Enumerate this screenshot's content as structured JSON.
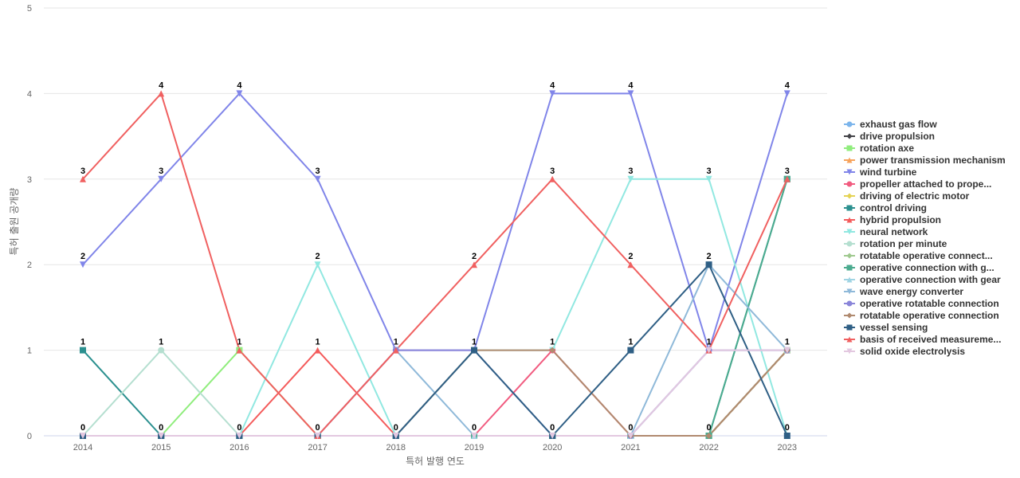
{
  "chart_data": {
    "type": "line",
    "xlabel": "특허 발행 연도",
    "ylabel": "특허 출원 공개량",
    "ylim": [
      0,
      5
    ],
    "yticks": [
      0,
      1,
      2,
      3,
      4,
      5
    ],
    "grid": true,
    "legend_position": "right",
    "x": [
      "2014",
      "2015",
      "2016",
      "2017",
      "2018",
      "2019",
      "2020",
      "2021",
      "2022",
      "2023"
    ],
    "series": [
      {
        "name": "exhaust gas flow",
        "color": "#7cb5ec",
        "marker": "circle",
        "values": [
          0,
          0,
          0,
          0,
          0,
          0,
          0,
          0,
          0,
          1
        ]
      },
      {
        "name": "drive propulsion",
        "color": "#434348",
        "marker": "diamond",
        "values": [
          0,
          0,
          0,
          0,
          0,
          0,
          0,
          0,
          0,
          1
        ]
      },
      {
        "name": "rotation axe",
        "color": "#90ed7d",
        "marker": "square",
        "values": [
          0,
          0,
          1,
          0,
          0,
          0,
          0,
          0,
          0,
          1
        ]
      },
      {
        "name": "power transmission mechanism",
        "color": "#f7a35c",
        "marker": "triangle",
        "values": [
          0,
          0,
          0,
          0,
          0,
          0,
          0,
          0,
          0,
          1
        ]
      },
      {
        "name": "wind turbine",
        "color": "#8085e9",
        "marker": "triangle-down",
        "values": [
          2,
          3,
          4,
          3,
          1,
          1,
          4,
          4,
          1,
          4
        ]
      },
      {
        "name": "propeller attached to prope...",
        "color": "#f15c80",
        "marker": "circle",
        "values": [
          0,
          0,
          0,
          0,
          0,
          0,
          1,
          0,
          0,
          1
        ]
      },
      {
        "name": "driving of electric motor",
        "color": "#e4d354",
        "marker": "diamond",
        "values": [
          0,
          0,
          0,
          0,
          0,
          0,
          0,
          0,
          0,
          1
        ]
      },
      {
        "name": "control driving",
        "color": "#2b908f",
        "marker": "square",
        "values": [
          1,
          0,
          0,
          0,
          0,
          0,
          0,
          0,
          0,
          3
        ]
      },
      {
        "name": "hybrid propulsion",
        "color": "#f45b5b",
        "marker": "triangle",
        "values": [
          0,
          0,
          0,
          1,
          0,
          0,
          0,
          0,
          0,
          1
        ]
      },
      {
        "name": "neural network",
        "color": "#91e8e1",
        "marker": "triangle-down",
        "values": [
          0,
          0,
          0,
          2,
          0,
          1,
          1,
          3,
          3,
          0
        ]
      },
      {
        "name": "rotation per minute",
        "color": "#b5dfd0",
        "marker": "circle",
        "values": [
          0,
          1,
          0,
          0,
          0,
          0,
          0,
          0,
          0,
          1
        ]
      },
      {
        "name": "rotatable operative connect...",
        "color": "#9fc98f",
        "marker": "diamond",
        "values": [
          0,
          0,
          0,
          0,
          0,
          0,
          0,
          0,
          0,
          1
        ]
      },
      {
        "name": "operative connection with g...",
        "color": "#4bab8f",
        "marker": "square",
        "values": [
          0,
          0,
          0,
          0,
          0,
          0,
          0,
          0,
          0,
          3
        ]
      },
      {
        "name": "operative connection with gear",
        "color": "#9fd4e3",
        "marker": "triangle",
        "values": [
          0,
          0,
          0,
          0,
          0,
          0,
          0,
          0,
          1,
          1
        ]
      },
      {
        "name": "wave energy converter",
        "color": "#8fb9d9",
        "marker": "triangle-down",
        "values": [
          0,
          0,
          0,
          0,
          1,
          0,
          0,
          0,
          2,
          1
        ]
      },
      {
        "name": "operative rotatable connection",
        "color": "#8a85d9",
        "marker": "circle",
        "values": [
          0,
          0,
          0,
          0,
          1,
          1,
          0,
          0,
          1,
          1
        ]
      },
      {
        "name": "rotatable operative connection",
        "color": "#b08a6f",
        "marker": "diamond",
        "values": [
          0,
          0,
          0,
          0,
          0,
          1,
          1,
          0,
          0,
          1
        ]
      },
      {
        "name": "vessel sensing",
        "color": "#2f5f85",
        "marker": "square",
        "values": [
          0,
          0,
          0,
          0,
          0,
          1,
          0,
          1,
          2,
          0
        ]
      },
      {
        "name": "basis of received measureme...",
        "color": "#f06060",
        "marker": "triangle",
        "values": [
          3,
          4,
          1,
          0,
          1,
          2,
          3,
          2,
          1,
          3
        ]
      },
      {
        "name": "solid oxide electrolysis",
        "color": "#e3c8e0",
        "marker": "triangle-down",
        "values": [
          0,
          0,
          0,
          0,
          0,
          0,
          0,
          0,
          1,
          1
        ]
      }
    ],
    "data_labels": [
      {
        "x": "2014",
        "values": [
          3,
          2,
          1,
          0
        ]
      },
      {
        "x": "2015",
        "values": [
          4,
          3,
          1,
          0
        ]
      },
      {
        "x": "2016",
        "values": [
          4,
          1,
          0
        ]
      },
      {
        "x": "2017",
        "values": [
          3,
          2,
          1,
          0
        ]
      },
      {
        "x": "2018",
        "values": [
          1,
          0
        ]
      },
      {
        "x": "2019",
        "values": [
          2,
          1,
          0
        ]
      },
      {
        "x": "2020",
        "values": [
          4,
          3,
          1,
          0
        ]
      },
      {
        "x": "2021",
        "values": [
          4,
          3,
          2,
          1,
          0
        ]
      },
      {
        "x": "2022",
        "values": [
          3,
          2,
          1,
          0
        ]
      },
      {
        "x": "2023",
        "values": [
          4,
          3,
          1,
          0
        ]
      }
    ]
  }
}
